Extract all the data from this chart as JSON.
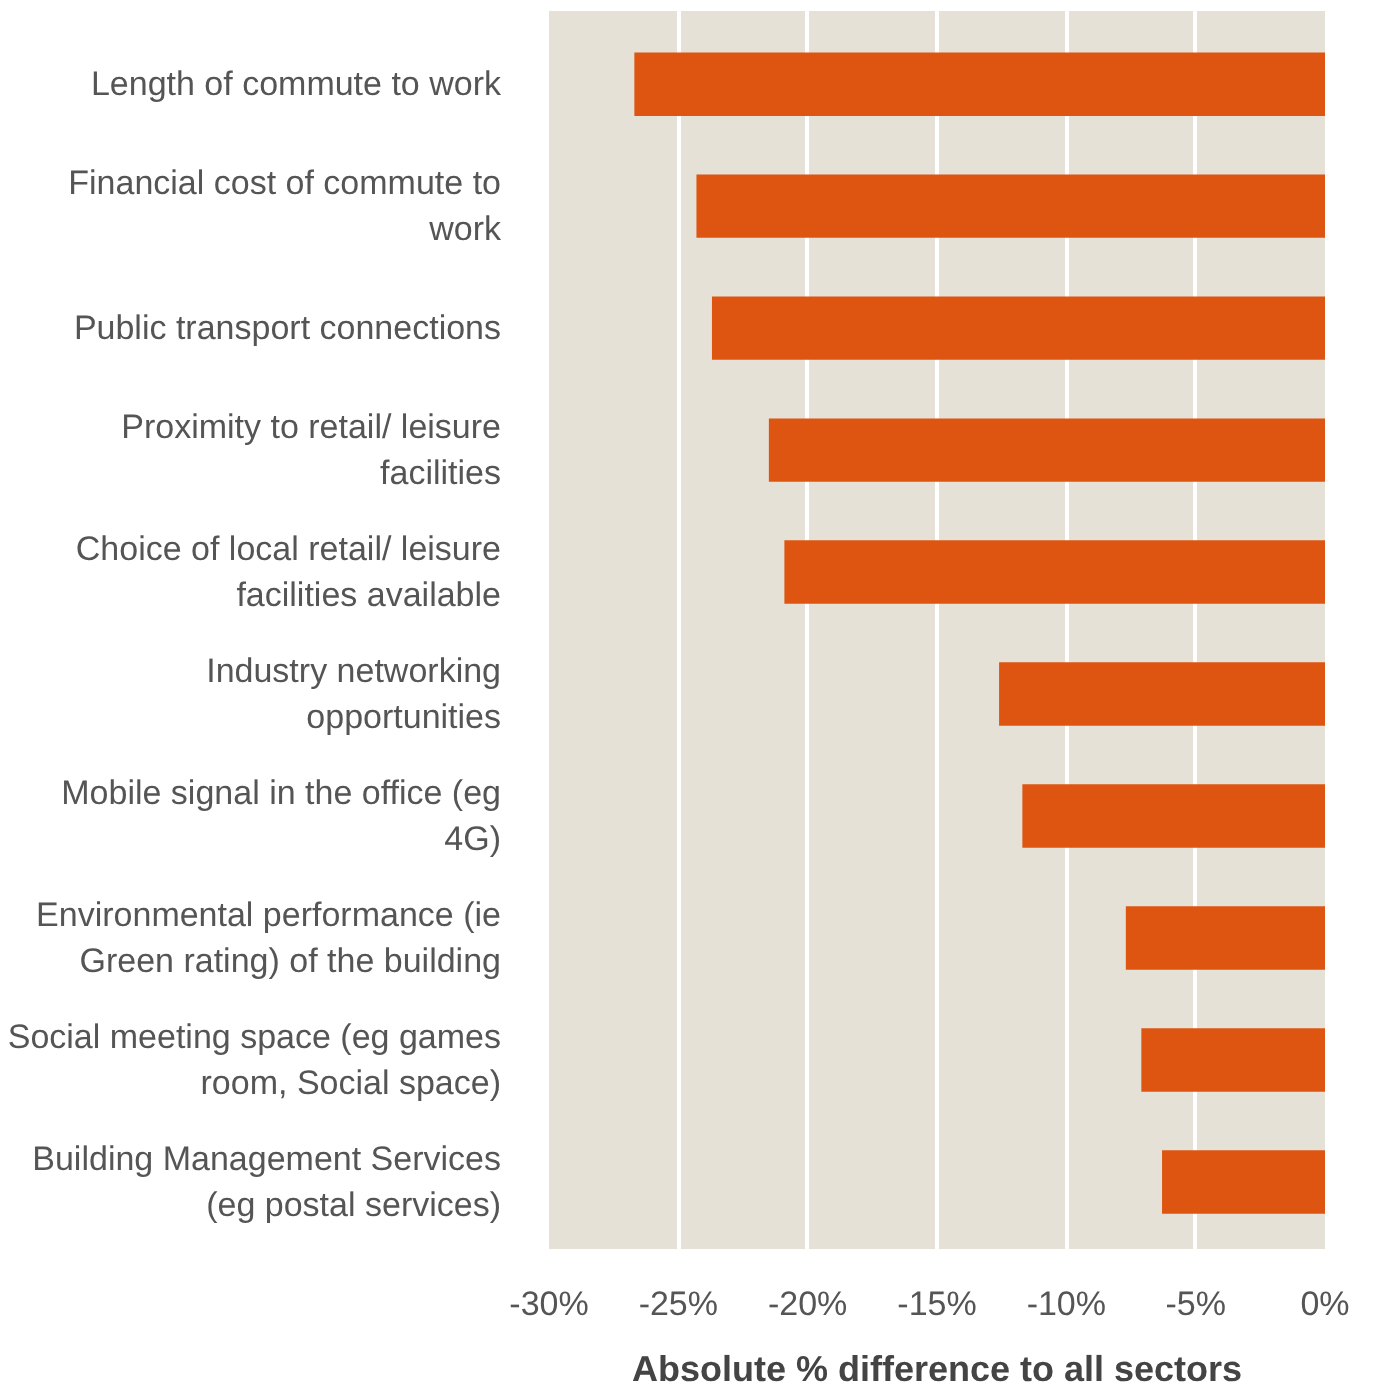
{
  "chart_data": {
    "type": "bar",
    "orientation": "horizontal",
    "xlabel": "Absolute % difference to all sectors",
    "categories": [
      "Length of commute to work",
      "Financial cost of commute to work",
      "Public transport connections",
      "Proximity to retail/ leisure facilities",
      "Choice of local retail/ leisure facilities available",
      "Industry networking opportunities",
      "Mobile signal in the office (eg 4G)",
      "Environmental performance (ie Green rating) of the building",
      "Social meeting space (eg games room, Social space)",
      "Building Management Services (eg postal services)"
    ],
    "values": [
      -26.7,
      -24.3,
      -23.7,
      -21.5,
      -20.9,
      -12.6,
      -11.7,
      -7.7,
      -7.1,
      -6.3
    ],
    "color": "#dd5511",
    "xlim": [
      -30,
      0
    ],
    "xticks": [
      {
        "value": -30,
        "label": "-30%"
      },
      {
        "value": -25,
        "label": "-25%"
      },
      {
        "value": -20,
        "label": "-20%"
      },
      {
        "value": -15,
        "label": "-15%"
      },
      {
        "value": -10,
        "label": "-10%"
      },
      {
        "value": -5,
        "label": "-5%"
      },
      {
        "value": 0,
        "label": "0%"
      }
    ],
    "grid": "x"
  }
}
